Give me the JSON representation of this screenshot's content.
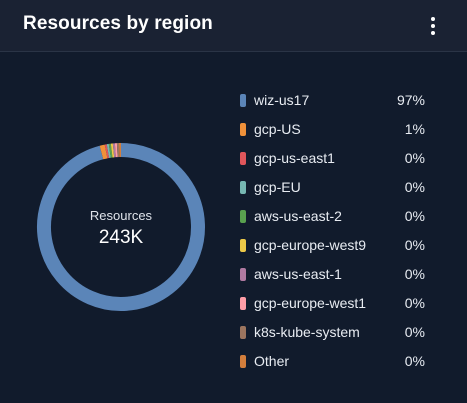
{
  "widget": {
    "title": "Resources by region",
    "menu_icon": "kebab-menu-icon"
  },
  "center": {
    "label": "Resources",
    "value": "243K"
  },
  "chart_data": {
    "type": "pie",
    "categories": [
      "wiz-us17",
      "gcp-US",
      "gcp-us-east1",
      "gcp-EU",
      "aws-us-east-2",
      "gcp-europe-west9",
      "aws-us-east-1",
      "gcp-europe-west1",
      "k8s-kube-system",
      "Other"
    ],
    "values": [
      97,
      1,
      0,
      0,
      0,
      0,
      0,
      0,
      0,
      0
    ],
    "value_labels": [
      "97%",
      "1%",
      "0%",
      "0%",
      "0%",
      "0%",
      "0%",
      "0%",
      "0%",
      "0%"
    ],
    "colors": [
      "#5b85b8",
      "#f0913a",
      "#e0565b",
      "#76b7b2",
      "#59a14f",
      "#edc948",
      "#b07aa1",
      "#ff9da7",
      "#9c755f",
      "#d37e3c"
    ],
    "legend_position": "right"
  }
}
